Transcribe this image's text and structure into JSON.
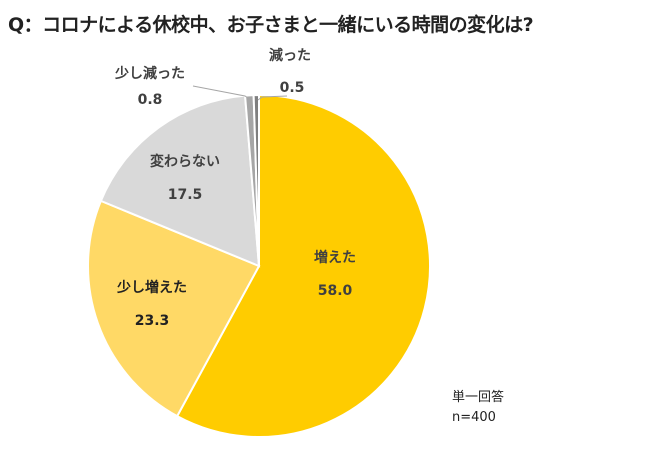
{
  "chart_data": {
    "type": "pie",
    "title": "Q：コロナによる休校中、お子さまと一緒にいる時間の変化は?",
    "slices": [
      {
        "label": "増えた",
        "value": 58.0,
        "display": "58.0",
        "color": "#FFCC00"
      },
      {
        "label": "少し増えた",
        "value": 23.3,
        "display": "23.3",
        "color": "#FFD966"
      },
      {
        "label": "変わらない",
        "value": 17.5,
        "display": "17.5",
        "color": "#D9D9D9"
      },
      {
        "label": "少し減った",
        "value": 0.8,
        "display": "0.8",
        "color": "#A6A6A6"
      },
      {
        "label": "減った",
        "value": 0.5,
        "display": "0.5",
        "color": "#7F7F7F"
      }
    ],
    "unit": "%",
    "start_angle": "12 o'clock",
    "direction": "clockwise"
  },
  "notes": {
    "answer_type": "単一回答",
    "sample": "n=400"
  }
}
